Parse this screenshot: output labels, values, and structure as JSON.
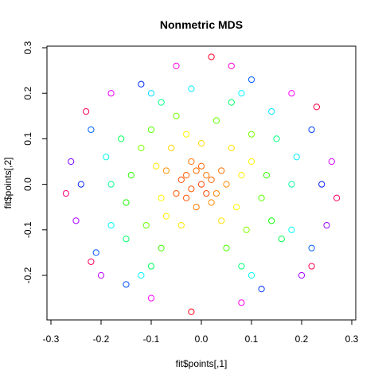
{
  "chart_data": {
    "type": "scatter",
    "title": "Nonmetric MDS",
    "xlabel": "fit$points[,1]",
    "ylabel": "fit$points[,2]",
    "xlim": [
      -0.3,
      0.3
    ],
    "ylim": [
      -0.3,
      0.3
    ],
    "x_ticks": [
      -0.3,
      -0.2,
      -0.1,
      0.0,
      0.1,
      0.2,
      0.3
    ],
    "x_tick_labels": [
      "-0.3",
      "-0.2",
      "-0.1",
      "0.0",
      "0.1",
      "0.2",
      "0.3"
    ],
    "y_ticks": [
      -0.2,
      -0.1,
      0.0,
      0.1,
      0.2,
      0.3
    ],
    "y_tick_labels": [
      "-0.2",
      "-0.1",
      "0.0",
      "0.1",
      "0.2",
      "0.3"
    ],
    "grid": false,
    "legend": "none",
    "marker": "open-circle",
    "color_scale": "rainbow hue by point",
    "series": [
      {
        "points": [
          {
            "x": -0.04,
            "y": 0.01,
            "hue": 18
          },
          {
            "x": -0.03,
            "y": 0.02,
            "hue": 22
          },
          {
            "x": -0.02,
            "y": -0.01,
            "hue": 20
          },
          {
            "x": -0.01,
            "y": 0.03,
            "hue": 25
          },
          {
            "x": 0.0,
            "y": 0.0,
            "hue": 15
          },
          {
            "x": 0.01,
            "y": 0.02,
            "hue": 28
          },
          {
            "x": 0.02,
            "y": 0.01,
            "hue": 24
          },
          {
            "x": 0.03,
            "y": -0.02,
            "hue": 30
          },
          {
            "x": -0.05,
            "y": -0.02,
            "hue": 21
          },
          {
            "x": 0.04,
            "y": 0.03,
            "hue": 26
          },
          {
            "x": 0.02,
            "y": -0.04,
            "hue": 32
          },
          {
            "x": -0.03,
            "y": -0.03,
            "hue": 19
          },
          {
            "x": -0.02,
            "y": 0.05,
            "hue": 27
          },
          {
            "x": 0.0,
            "y": 0.04,
            "hue": 23
          },
          {
            "x": 0.01,
            "y": -0.02,
            "hue": 17
          },
          {
            "x": -0.07,
            "y": 0.03,
            "hue": 35
          },
          {
            "x": 0.05,
            "y": 0.0,
            "hue": 33
          },
          {
            "x": -0.01,
            "y": -0.05,
            "hue": 29
          },
          {
            "x": -0.09,
            "y": 0.04,
            "hue": 55
          },
          {
            "x": -0.08,
            "y": -0.03,
            "hue": 58
          },
          {
            "x": -0.06,
            "y": 0.08,
            "hue": 50
          },
          {
            "x": 0.06,
            "y": 0.08,
            "hue": 52
          },
          {
            "x": 0.08,
            "y": 0.02,
            "hue": 56
          },
          {
            "x": 0.07,
            "y": -0.05,
            "hue": 60
          },
          {
            "x": -0.07,
            "y": -0.07,
            "hue": 57
          },
          {
            "x": -0.04,
            "y": -0.09,
            "hue": 54
          },
          {
            "x": 0.04,
            "y": -0.08,
            "hue": 53
          },
          {
            "x": 0.0,
            "y": 0.09,
            "hue": 51
          },
          {
            "x": -0.03,
            "y": 0.11,
            "hue": 59
          },
          {
            "x": 0.1,
            "y": 0.05,
            "hue": 62
          },
          {
            "x": -0.12,
            "y": 0.08,
            "hue": 90
          },
          {
            "x": -0.11,
            "y": -0.09,
            "hue": 95
          },
          {
            "x": -0.1,
            "y": 0.12,
            "hue": 100
          },
          {
            "x": 0.1,
            "y": 0.11,
            "hue": 92
          },
          {
            "x": 0.12,
            "y": -0.03,
            "hue": 98
          },
          {
            "x": 0.09,
            "y": -0.1,
            "hue": 88
          },
          {
            "x": -0.08,
            "y": -0.14,
            "hue": 105
          },
          {
            "x": 0.05,
            "y": -0.14,
            "hue": 102
          },
          {
            "x": -0.05,
            "y": 0.15,
            "hue": 93
          },
          {
            "x": 0.03,
            "y": 0.14,
            "hue": 97
          },
          {
            "x": -0.14,
            "y": 0.02,
            "hue": 110
          },
          {
            "x": 0.13,
            "y": 0.02,
            "hue": 108
          },
          {
            "x": -0.15,
            "y": -0.04,
            "hue": 115
          },
          {
            "x": 0.14,
            "y": -0.08,
            "hue": 118
          },
          {
            "x": -0.16,
            "y": 0.1,
            "hue": 140
          },
          {
            "x": -0.15,
            "y": -0.12,
            "hue": 145
          },
          {
            "x": 0.15,
            "y": 0.1,
            "hue": 150
          },
          {
            "x": 0.16,
            "y": -0.12,
            "hue": 138
          },
          {
            "x": -0.1,
            "y": -0.18,
            "hue": 142
          },
          {
            "x": 0.08,
            "y": -0.18,
            "hue": 148
          },
          {
            "x": -0.08,
            "y": 0.18,
            "hue": 152
          },
          {
            "x": 0.06,
            "y": 0.18,
            "hue": 144
          },
          {
            "x": -0.18,
            "y": 0.0,
            "hue": 155
          },
          {
            "x": 0.18,
            "y": 0.0,
            "hue": 158
          },
          {
            "x": -0.19,
            "y": 0.06,
            "hue": 175
          },
          {
            "x": -0.18,
            "y": -0.09,
            "hue": 180
          },
          {
            "x": 0.19,
            "y": 0.06,
            "hue": 185
          },
          {
            "x": 0.18,
            "y": -0.1,
            "hue": 178
          },
          {
            "x": -0.12,
            "y": -0.2,
            "hue": 182
          },
          {
            "x": 0.1,
            "y": -0.2,
            "hue": 176
          },
          {
            "x": -0.1,
            "y": 0.2,
            "hue": 188
          },
          {
            "x": 0.08,
            "y": 0.2,
            "hue": 181
          },
          {
            "x": -0.02,
            "y": 0.21,
            "hue": 184
          },
          {
            "x": 0.14,
            "y": 0.16,
            "hue": 186
          },
          {
            "x": -0.22,
            "y": 0.12,
            "hue": 215
          },
          {
            "x": -0.21,
            "y": -0.15,
            "hue": 220
          },
          {
            "x": 0.22,
            "y": 0.12,
            "hue": 225
          },
          {
            "x": 0.22,
            "y": -0.14,
            "hue": 218
          },
          {
            "x": -0.15,
            "y": -0.22,
            "hue": 222
          },
          {
            "x": 0.12,
            "y": -0.23,
            "hue": 228
          },
          {
            "x": -0.12,
            "y": 0.22,
            "hue": 230
          },
          {
            "x": 0.1,
            "y": 0.23,
            "hue": 219
          },
          {
            "x": -0.24,
            "y": 0.0,
            "hue": 232
          },
          {
            "x": 0.24,
            "y": 0.0,
            "hue": 235
          },
          {
            "x": -0.26,
            "y": 0.05,
            "hue": 270
          },
          {
            "x": -0.25,
            "y": -0.08,
            "hue": 280
          },
          {
            "x": 0.26,
            "y": 0.05,
            "hue": 290
          },
          {
            "x": 0.25,
            "y": -0.09,
            "hue": 275
          },
          {
            "x": -0.2,
            "y": -0.2,
            "hue": 285
          },
          {
            "x": 0.2,
            "y": -0.2,
            "hue": 278
          },
          {
            "x": -0.18,
            "y": 0.2,
            "hue": 295
          },
          {
            "x": 0.18,
            "y": 0.2,
            "hue": 300
          },
          {
            "x": -0.05,
            "y": 0.26,
            "hue": 305
          },
          {
            "x": 0.06,
            "y": 0.26,
            "hue": 310
          },
          {
            "x": -0.1,
            "y": -0.25,
            "hue": 300
          },
          {
            "x": 0.08,
            "y": -0.26,
            "hue": 305
          },
          {
            "x": -0.27,
            "y": -0.02,
            "hue": 330
          },
          {
            "x": 0.27,
            "y": -0.03,
            "hue": 335
          },
          {
            "x": -0.23,
            "y": 0.16,
            "hue": 340
          },
          {
            "x": 0.23,
            "y": 0.17,
            "hue": 345
          },
          {
            "x": 0.02,
            "y": 0.28,
            "hue": 350
          },
          {
            "x": -0.02,
            "y": -0.28,
            "hue": 355
          },
          {
            "x": -0.22,
            "y": -0.17,
            "hue": 338
          },
          {
            "x": 0.22,
            "y": -0.18,
            "hue": 342
          }
        ]
      }
    ]
  }
}
